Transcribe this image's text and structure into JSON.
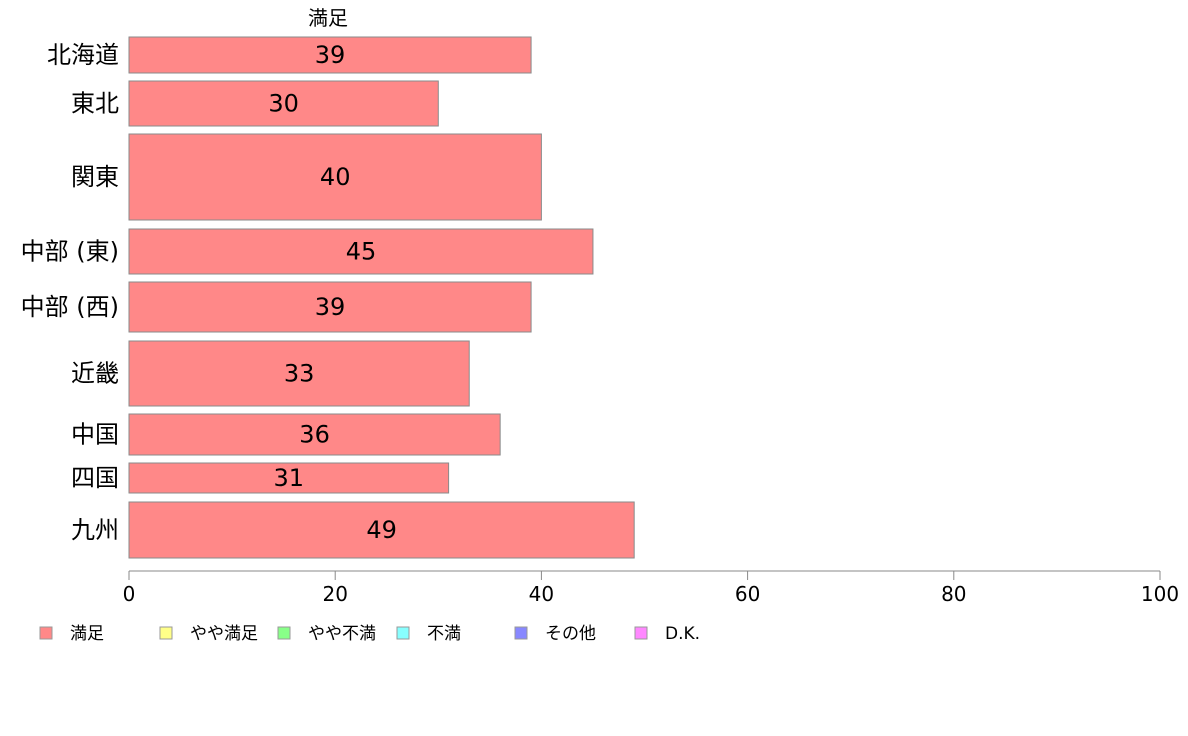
{
  "chart_data": {
    "type": "bar",
    "orientation": "horizontal",
    "stacked": true,
    "categories": [
      "北海道",
      "東北",
      "関東",
      "中部 (東)",
      "中部 (西)",
      "近畿",
      "中国",
      "四国",
      "九州"
    ],
    "series": [
      {
        "name": "満足",
        "values": [
          39,
          30,
          40,
          45,
          39,
          33,
          36,
          31,
          49
        ],
        "color": "#ff8888"
      }
    ],
    "series_header": "満足",
    "xlim": [
      0,
      100
    ],
    "xticks": [
      "0",
      "20",
      "40",
      "60",
      "80",
      "100"
    ],
    "grid": false,
    "legend": {
      "placement": "bottom",
      "items": [
        {
          "label": "満足",
          "color": "#ff8888"
        },
        {
          "label": "やや満足",
          "color": "#ffff88"
        },
        {
          "label": "やや不満",
          "color": "#88ff88"
        },
        {
          "label": "不満",
          "color": "#88ffff"
        },
        {
          "label": "その他",
          "color": "#8888ff"
        },
        {
          "label": "D.K.",
          "color": "#ff88ff"
        }
      ]
    }
  }
}
